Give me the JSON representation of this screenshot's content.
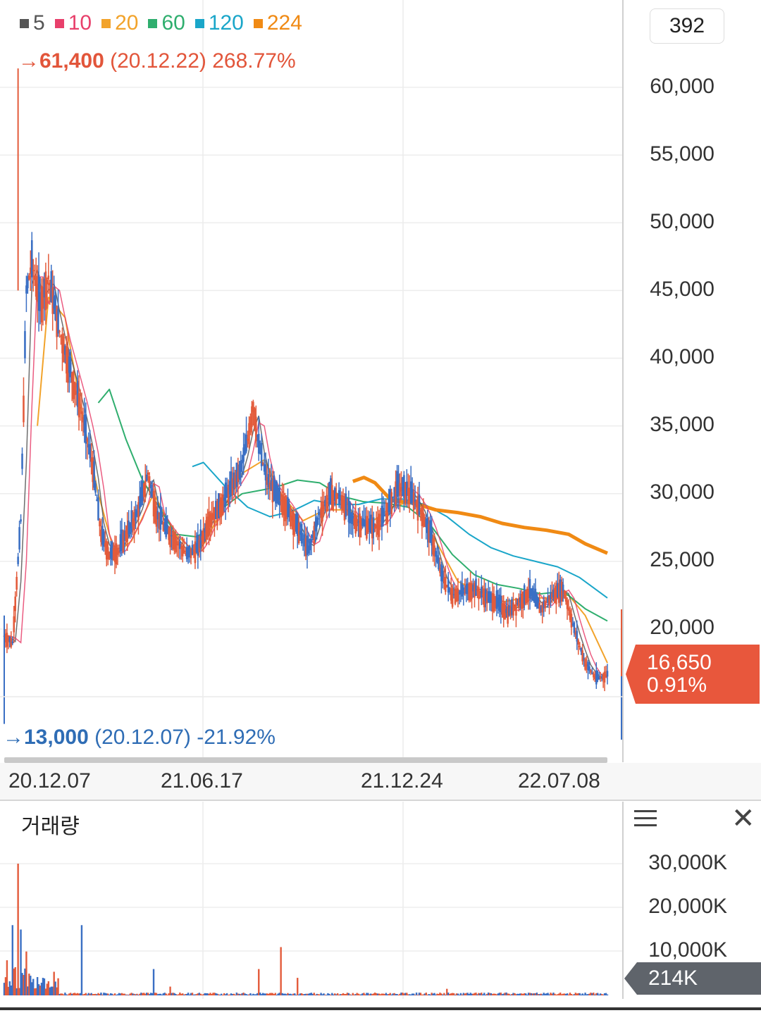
{
  "legend": [
    {
      "label": "5",
      "color": "#555555"
    },
    {
      "label": "10",
      "color": "#e8406b"
    },
    {
      "label": "20",
      "color": "#f2a32b"
    },
    {
      "label": "60",
      "color": "#2fae6e"
    },
    {
      "label": "120",
      "color": "#1aa6c9"
    },
    {
      "label": "224",
      "color": "#f08a14"
    }
  ],
  "high_note": {
    "arrow": "→",
    "price": "61,400",
    "date": "(20.12.22)",
    "pct": "268.77%"
  },
  "low_note": {
    "arrow": "→",
    "price": "13,000",
    "date": "(20.12.07)",
    "pct": "-21.92%"
  },
  "ticker_value": "392",
  "price_tag": {
    "price": "16,650",
    "pct": "0.91%"
  },
  "volume_title": "거래량",
  "volume_tag": "214K",
  "chart_data": [
    {
      "type": "candlestick",
      "y_axis_labels": [
        "60,000",
        "55,000",
        "50,000",
        "45,000",
        "40,000",
        "35,000",
        "30,000",
        "25,000",
        "20,000"
      ],
      "ylim": [
        14000,
        62000
      ],
      "x_tick_labels": [
        "20.12.07",
        "21.06.17",
        "21.12.24",
        "22.07.08"
      ],
      "series": [
        {
          "name": "5",
          "color": "#555555"
        },
        {
          "name": "10",
          "color": "#e8406b"
        },
        {
          "name": "20",
          "color": "#f2a32b"
        },
        {
          "name": "60",
          "color": "#2fae6e"
        },
        {
          "name": "120",
          "color": "#1aa6c9"
        },
        {
          "name": "224",
          "color": "#f08a14"
        }
      ],
      "close_path": [
        [
          0,
          19500
        ],
        [
          3,
          19000
        ],
        [
          6,
          28000
        ],
        [
          8,
          45000
        ],
        [
          10,
          47000
        ],
        [
          13,
          44000
        ],
        [
          16,
          46000
        ],
        [
          20,
          42000
        ],
        [
          24,
          39000
        ],
        [
          28,
          36000
        ],
        [
          32,
          32000
        ],
        [
          35,
          27000
        ],
        [
          38,
          25500
        ],
        [
          41,
          25800
        ],
        [
          44,
          27000
        ],
        [
          48,
          28500
        ],
        [
          52,
          31500
        ],
        [
          55,
          28500
        ],
        [
          58,
          27500
        ],
        [
          62,
          26500
        ],
        [
          66,
          25500
        ],
        [
          70,
          26000
        ],
        [
          74,
          28000
        ],
        [
          78,
          29000
        ],
        [
          82,
          30500
        ],
        [
          85,
          31500
        ],
        [
          88,
          34000
        ],
        [
          90,
          36500
        ],
        [
          92,
          33500
        ],
        [
          95,
          31000
        ],
        [
          98,
          30000
        ],
        [
          102,
          29000
        ],
        [
          106,
          27500
        ],
        [
          110,
          25800
        ],
        [
          114,
          28500
        ],
        [
          118,
          30000
        ],
        [
          122,
          29500
        ],
        [
          126,
          28000
        ],
        [
          130,
          27800
        ],
        [
          134,
          27500
        ],
        [
          138,
          28500
        ],
        [
          142,
          30500
        ],
        [
          146,
          30200
        ],
        [
          150,
          29000
        ],
        [
          154,
          27000
        ],
        [
          158,
          24000
        ],
        [
          162,
          22500
        ],
        [
          166,
          22800
        ],
        [
          170,
          23000
        ],
        [
          174,
          22400
        ],
        [
          178,
          22000
        ],
        [
          182,
          21200
        ],
        [
          186,
          22000
        ],
        [
          190,
          22800
        ],
        [
          194,
          21500
        ],
        [
          198,
          22500
        ],
        [
          202,
          23000
        ],
        [
          206,
          20000
        ],
        [
          210,
          17500
        ],
        [
          214,
          16300
        ],
        [
          218,
          16650
        ]
      ],
      "moving_averages": {
        "20": [
          [
            12,
            35000
          ],
          [
            16,
            44500
          ],
          [
            22,
            43000
          ],
          [
            28,
            36000
          ],
          [
            34,
            30000
          ],
          [
            40,
            25500
          ],
          [
            46,
            26500
          ],
          [
            54,
            30000
          ],
          [
            62,
            27000
          ],
          [
            70,
            25500
          ],
          [
            78,
            28500
          ],
          [
            86,
            31500
          ],
          [
            94,
            32500
          ],
          [
            100,
            30000
          ],
          [
            108,
            28000
          ],
          [
            116,
            28800
          ],
          [
            124,
            28800
          ],
          [
            132,
            27800
          ],
          [
            140,
            29000
          ],
          [
            148,
            29500
          ],
          [
            156,
            26500
          ],
          [
            164,
            23500
          ],
          [
            172,
            22800
          ],
          [
            180,
            22000
          ],
          [
            188,
            22300
          ],
          [
            196,
            22300
          ],
          [
            204,
            22500
          ],
          [
            210,
            21000
          ],
          [
            218,
            17500
          ]
        ],
        "60": [
          [
            34,
            36700
          ],
          [
            38,
            37700
          ],
          [
            44,
            34000
          ],
          [
            50,
            31000
          ],
          [
            56,
            29000
          ],
          [
            62,
            27000
          ],
          [
            70,
            26800
          ],
          [
            78,
            28800
          ],
          [
            86,
            30000
          ],
          [
            94,
            30300
          ],
          [
            100,
            30600
          ],
          [
            106,
            31000
          ],
          [
            114,
            30800
          ],
          [
            122,
            29800
          ],
          [
            130,
            29400
          ],
          [
            138,
            29300
          ],
          [
            146,
            29000
          ],
          [
            154,
            27700
          ],
          [
            162,
            25500
          ],
          [
            170,
            24000
          ],
          [
            178,
            23300
          ],
          [
            186,
            23000
          ],
          [
            194,
            22600
          ],
          [
            202,
            22800
          ],
          [
            210,
            21500
          ],
          [
            218,
            20600
          ]
        ],
        "120": [
          [
            68,
            32000
          ],
          [
            72,
            32300
          ],
          [
            80,
            30500
          ],
          [
            88,
            29000
          ],
          [
            96,
            28300
          ],
          [
            104,
            28700
          ],
          [
            112,
            29500
          ],
          [
            120,
            29200
          ],
          [
            128,
            29200
          ],
          [
            136,
            29600
          ],
          [
            144,
            29600
          ],
          [
            152,
            29200
          ],
          [
            160,
            28300
          ],
          [
            168,
            27000
          ],
          [
            176,
            26000
          ],
          [
            184,
            25400
          ],
          [
            192,
            25000
          ],
          [
            200,
            24600
          ],
          [
            208,
            23800
          ],
          [
            218,
            22300
          ]
        ],
        "224": [
          [
            126,
            30900
          ],
          [
            130,
            31200
          ],
          [
            134,
            30800
          ],
          [
            140,
            29500
          ],
          [
            148,
            29300
          ],
          [
            156,
            28800
          ],
          [
            164,
            28600
          ],
          [
            172,
            28300
          ],
          [
            180,
            27800
          ],
          [
            188,
            27500
          ],
          [
            196,
            27300
          ],
          [
            204,
            27000
          ],
          [
            210,
            26300
          ],
          [
            218,
            25600
          ]
        ]
      }
    },
    {
      "type": "bar",
      "title": "거래량",
      "y_axis_labels": [
        "30,000K",
        "20,000K",
        "10,000K"
      ],
      "ylim": [
        0,
        32000
      ],
      "spikes": [
        [
          1,
          8000
        ],
        [
          3,
          16000
        ],
        [
          5,
          30000
        ],
        [
          6,
          15000
        ],
        [
          8,
          10000
        ],
        [
          10,
          3000
        ],
        [
          14,
          4000
        ],
        [
          17,
          2000
        ],
        [
          28,
          16000
        ],
        [
          54,
          6000
        ],
        [
          60,
          2000
        ],
        [
          92,
          6000
        ],
        [
          100,
          11000
        ],
        [
          106,
          4000
        ],
        [
          160,
          1500
        ],
        [
          218,
          214
        ]
      ]
    }
  ]
}
